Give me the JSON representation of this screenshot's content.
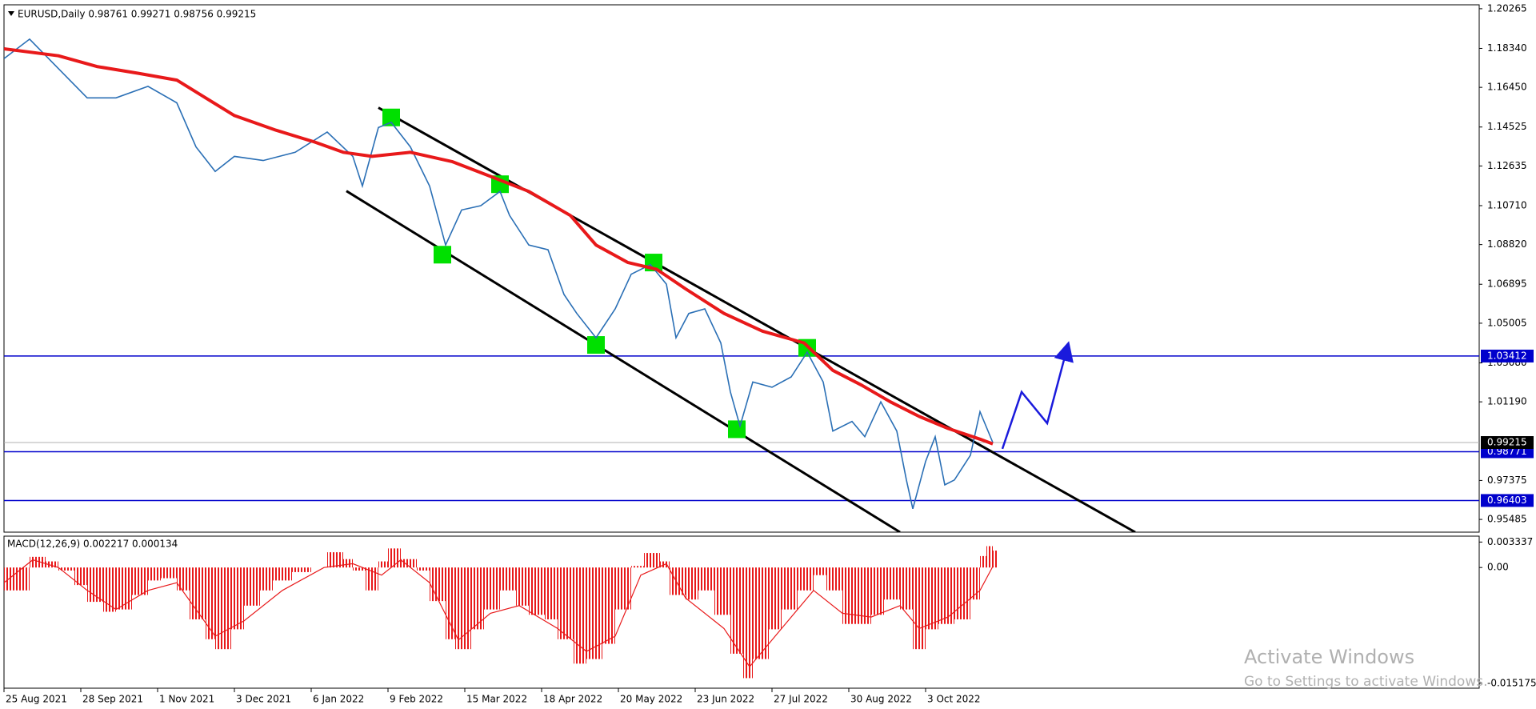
{
  "chart_data": [
    {
      "type": "line",
      "title": "EURUSD,Daily  0.98761 0.99271 0.98756 0.99215",
      "x": [
        0,
        8,
        17,
        26,
        35,
        45,
        54,
        60,
        66,
        72,
        81,
        91,
        101,
        109,
        112,
        117,
        121,
        127,
        133,
        138,
        143,
        149,
        155,
        158,
        164,
        170,
        175,
        179,
        185,
        191,
        196,
        202,
        207,
        210,
        214,
        219,
        224,
        227,
        230,
        234,
        240,
        246,
        251,
        256,
        259,
        265,
        269,
        274,
        279,
        282,
        284,
        288,
        291,
        294,
        297,
        302,
        305,
        309
      ],
      "series": [
        {
          "color": "#2a6fb5",
          "values": [
            1.1784,
            1.1879,
            1.1736,
            1.1594,
            1.1594,
            1.165,
            1.157,
            1.1356,
            1.1237,
            1.131,
            1.129,
            1.133,
            1.1428,
            1.131,
            1.1166,
            1.145,
            1.1475,
            1.1356,
            1.1166,
            1.088,
            1.105,
            1.1071,
            1.114,
            1.1023,
            1.088,
            1.0857,
            1.064,
            1.0548,
            1.043,
            1.057,
            1.0738,
            1.0785,
            1.069,
            1.043,
            1.0548,
            1.057,
            1.0405,
            1.0167,
            1.0001,
            1.0215,
            1.019,
            1.024,
            1.036,
            1.0215,
            0.9977,
            1.0024,
            0.995,
            1.0119,
            0.9977,
            0.974,
            0.96,
            0.983,
            0.995,
            0.9716,
            0.974,
            0.986,
            1.0071,
            0.99215
          ]
        }
      ],
      "moving_average": {
        "color": "#e8191a",
        "x": [
          0,
          17,
          29,
          42,
          54,
          63,
          72,
          85,
          97,
          106,
          115,
          127,
          140,
          152,
          164,
          177,
          185,
          195,
          204,
          213,
          225,
          237,
          250,
          259,
          268,
          277,
          286,
          295,
          305,
          309
        ],
        "values": [
          1.1832,
          1.1798,
          1.1746,
          1.1713,
          1.168,
          1.1594,
          1.1508,
          1.1437,
          1.138,
          1.133,
          1.131,
          1.133,
          1.1285,
          1.1213,
          1.114,
          1.1023,
          1.088,
          1.0795,
          1.0762,
          1.0667,
          1.0548,
          1.0462,
          1.0405,
          1.0272,
          1.02,
          1.0119,
          1.0048,
          0.999,
          0.9938,
          0.9915
        ]
      },
      "trendlines": [
        {
          "x": [
            117,
            353.5
          ],
          "y": [
            1.1546,
            0.94867
          ],
          "color": "#000000"
        },
        {
          "x": [
            107,
            280
          ],
          "y": [
            1.1142,
            0.94867
          ],
          "color": "#000000"
        }
      ],
      "markers": {
        "color": "#00e000",
        "x": [
          121,
          155,
          137,
          203,
          185,
          251,
          229
        ],
        "y": [
          1.1499,
          1.1175,
          1.0833,
          1.0795,
          1.0395,
          1.0381,
          0.9986
        ]
      },
      "forecast": {
        "color": "#1a1adc",
        "x": [
          312,
          318,
          326,
          332
        ],
        "y": [
          0.9891,
          1.0167,
          1.0015,
          1.0367
        ]
      },
      "levels": {
        "color": "#0000cc",
        "values": [
          1.03412,
          0.98771,
          0.96403
        ]
      },
      "last_price": 0.99215,
      "xlim": [
        0,
        461
      ],
      "ylim": [
        0.94867,
        1.20455
      ],
      "yticks": [
        1.20265,
        {
          "value": 1.1834,
          "label": "1.18340"
        },
        {
          "value": 1.1645,
          "label": "1.16450"
        },
        1.14525,
        1.12635,
        {
          "value": 1.1071,
          "label": "1.10710"
        },
        {
          "value": 1.0882,
          "label": "1.08820"
        },
        1.06895,
        1.05005,
        {
          "value": 1.0308,
          "label": "1.03080"
        },
        {
          "value": 1.0119,
          "label": "1.01190"
        },
        0.97375,
        0.95485
      ]
    },
    {
      "type": "bar",
      "title": "MACD(12,26,9) 0.002217 0.000134",
      "color": "#e8191a",
      "x": [
        0,
        8,
        13,
        17,
        22,
        26,
        31,
        35,
        40,
        45,
        49,
        54,
        58,
        63,
        66,
        71,
        75,
        80,
        84,
        90,
        96,
        101,
        106,
        109,
        113,
        117,
        120,
        124,
        129,
        133,
        138,
        141,
        146,
        150,
        155,
        160,
        164,
        169,
        173,
        178,
        182,
        187,
        191,
        196,
        200,
        205,
        208,
        213,
        217,
        222,
        227,
        231,
        234,
        239,
        243,
        248,
        253,
        257,
        262,
        266,
        271,
        275,
        280,
        284,
        288,
        292,
        297,
        302,
        305,
        307,
        309
      ],
      "values": [
        -0.003,
        0.0014,
        0.0008,
        -0.0004,
        -0.0023,
        -0.0045,
        -0.0058,
        -0.0055,
        -0.0036,
        -0.0017,
        -0.0014,
        -0.003,
        -0.0068,
        -0.0094,
        -0.0107,
        -0.0081,
        -0.005,
        -0.003,
        -0.0017,
        -0.0006,
        0,
        0.002,
        0.0011,
        -0.0004,
        -0.003,
        0.0008,
        0.0025,
        0.0011,
        -0.0004,
        -0.0044,
        -0.0094,
        -0.0107,
        -0.0081,
        -0.0055,
        -0.003,
        -0.005,
        -0.0062,
        -0.0068,
        -0.0094,
        -0.0126,
        -0.012,
        -0.01,
        -0.0055,
        0.0002,
        0.0019,
        0.0008,
        -0.0036,
        -0.0042,
        -0.003,
        -0.0062,
        -0.0113,
        -0.0145,
        -0.012,
        -0.0081,
        -0.0055,
        -0.003,
        -0.001,
        -0.003,
        -0.0074,
        -0.0074,
        -0.0062,
        -0.0042,
        -0.0055,
        -0.0107,
        -0.0081,
        -0.0074,
        -0.0068,
        -0.0042,
        0.0015,
        0.0028,
        0.002217
      ],
      "signal": {
        "x": [
          0,
          9,
          17,
          26,
          35,
          45,
          54,
          66,
          75,
          87,
          100,
          109,
          118,
          124,
          133,
          142,
          152,
          161,
          173,
          182,
          191,
          199,
          207,
          213,
          225,
          233,
          243,
          253,
          262,
          271,
          280,
          286,
          295,
          305,
          309
        ],
        "values": [
          -0.002,
          0.001,
          0,
          -0.003,
          -0.0055,
          -0.003,
          -0.002,
          -0.009,
          -0.007,
          -0.003,
          0,
          0.0005,
          -0.001,
          0.001,
          -0.002,
          -0.0095,
          -0.006,
          -0.005,
          -0.008,
          -0.011,
          -0.009,
          -0.001,
          0.0005,
          -0.004,
          -0.008,
          -0.013,
          -0.008,
          -0.003,
          -0.006,
          -0.0065,
          -0.005,
          -0.008,
          -0.0065,
          -0.003,
          0.000134
        ]
      },
      "xlim": [
        0,
        461
      ],
      "ylim": [
        -0.01582,
        0.00411
      ],
      "yticks": [
        0.003337,
        {
          "value": 0,
          "label": "0.00"
        },
        -0.015175
      ],
      "xticks": [
        {
          "value": 0,
          "label": "25 Aug 2021"
        },
        {
          "value": 24,
          "label": "28 Sep 2021"
        },
        {
          "value": 48,
          "label": "1 Nov 2021"
        },
        {
          "value": 72,
          "label": "3 Dec 2021"
        },
        {
          "value": 96,
          "label": "6 Jan 2022"
        },
        {
          "value": 120,
          "label": "9 Feb 2022"
        },
        {
          "value": 144,
          "label": "15 Mar 2022"
        },
        {
          "value": 168,
          "label": "18 Apr 2022"
        },
        {
          "value": 192,
          "label": "20 May 2022"
        },
        {
          "value": 216,
          "label": "23 Jun 2022"
        },
        {
          "value": 240,
          "label": "27 Jul 2022"
        },
        {
          "value": 264,
          "label": "30 Aug 2022"
        },
        {
          "value": 288,
          "label": "3 Oct 2022"
        }
      ]
    }
  ],
  "watermark": {
    "title": "Activate Windows",
    "subtitle": "Go to Settings to activate Windows."
  }
}
